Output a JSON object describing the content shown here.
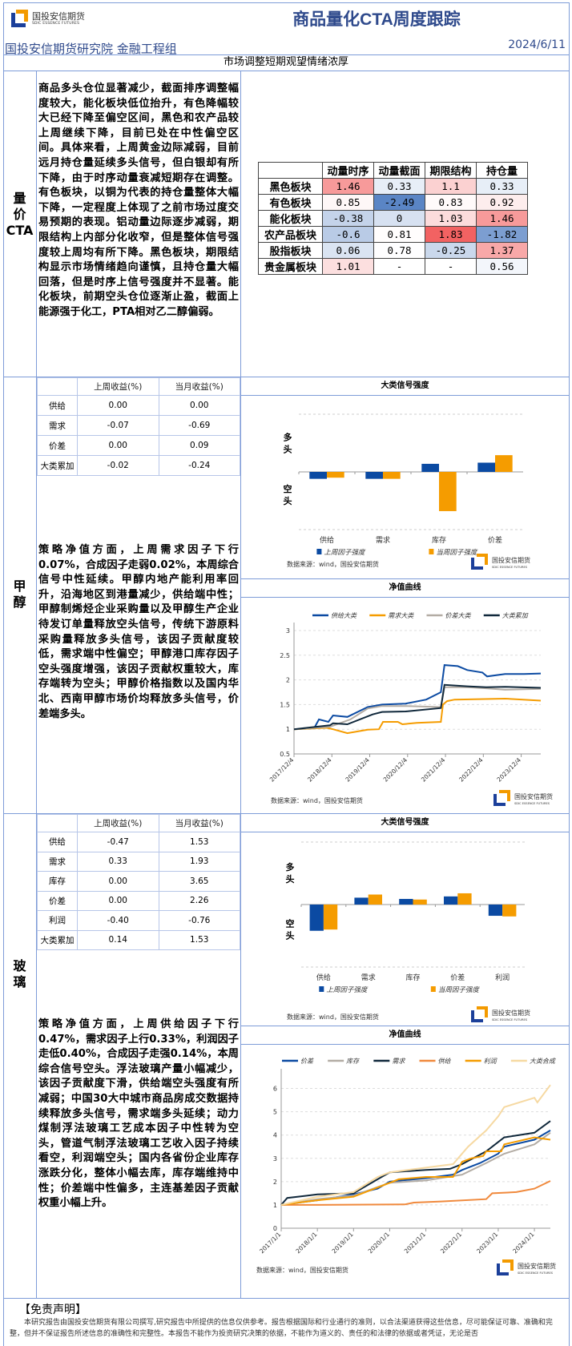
{
  "header": {
    "logo_cn": "国投安信期货",
    "logo_en": "SDIC ESSENCE FUTURES",
    "title": "商品量化CTA周度跟踪",
    "institute": "国投安信期货研究院 金融工程组",
    "date": "2024/6/11",
    "subtitle": "市场调整短期观望情绪浓厚"
  },
  "colors": {
    "border": "#7e9cd8",
    "blue": "#0b4aa2",
    "orange": "#f59c00",
    "gray": "#b3aca4",
    "dark": "#10283b",
    "light_orange": "#f0893c",
    "pale": "#f6d9a2",
    "heat_pos": "#f26262",
    "heat_neg": "#5a85c5"
  },
  "cta": {
    "label": [
      "量",
      "价",
      "CTA"
    ],
    "text": "商品多头仓位显著减少，截面排序调整幅度较大，能化板块低位抬升，有色降幅较大已经下降至偏空区间，黑色和农产品较上周继续下降，目前已处在中性偏空区间。具体来看，上周黄金边际减弱，目前远月持仓量延续多头信号，但白银却有所下降，由于时序动量衰减短期存在调整。有色板块，以铜为代表的持仓量整体大幅下降，一定程度上体现了之前市场过度交易预期的表现。铝动量边际逐步减弱，期限结构上内部分化收窄，但是整体信号强度较上周均有所下降。黑色板块，期限结构显示市场情绪趋向谨慎，且持仓量大幅回落，但是时序上信号强度并不显著。能化板块，前期空头仓位逐渐止盈，截面上能源强于化工，PTA相对乙二醇偏弱。",
    "heatmap": {
      "columns": [
        "动量时序",
        "动量截面",
        "期限结构",
        "持仓量"
      ],
      "rows": [
        {
          "name": "黑色板块",
          "values": [
            "1.46",
            "0.33",
            "1.1",
            "0.33"
          ]
        },
        {
          "name": "有色板块",
          "values": [
            "0.85",
            "-2.49",
            "0.83",
            "0.92"
          ]
        },
        {
          "name": "能化板块",
          "values": [
            "-0.38",
            "0",
            "1.03",
            "1.46"
          ]
        },
        {
          "name": "农产品板块",
          "values": [
            "-0.6",
            "0.81",
            "1.83",
            "-1.82"
          ]
        },
        {
          "name": "股指板块",
          "values": [
            "0.06",
            "0.78",
            "-0.25",
            "1.37"
          ]
        },
        {
          "name": "贵金属板块",
          "values": [
            "1.01",
            "-",
            "-",
            "0.56"
          ]
        }
      ]
    }
  },
  "methanol": {
    "label": [
      "甲",
      "醇"
    ],
    "table": {
      "headers": [
        "",
        "上周收益(%)",
        "当月收益(%)"
      ],
      "rows": [
        [
          "供给",
          "0.00",
          "0.00"
        ],
        [
          "需求",
          "-0.07",
          "-0.69"
        ],
        [
          "价差",
          "0.00",
          "0.09"
        ],
        [
          "大类累加",
          "-0.02",
          "-0.24"
        ]
      ]
    },
    "text": "策略净值方面，上周需求因子下行0.07%，合成因子走弱0.02%，本周综合信号中性延续。甲醇内地产能利用率回升，沿海地区到港量减少，供给端中性；甲醇制烯烃企业采购量以及甲醇生产企业待发订单量释放空头信号，传统下游原料采购量释放多头信号，该因子贡献度较低，需求端中性偏空；甲醇港口库存因子空头强度增强，该因子贡献权重较大，库存端转为空头；甲醇价格指数以及国内华北、西南甲醇市场价均释放多头信号，价差端多头。",
    "bar_title": "大类信号强度",
    "line_title": "净值曲线",
    "source": "数据来源：wind，国投安信期货"
  },
  "glass": {
    "label": [
      "玻",
      "璃"
    ],
    "table": {
      "headers": [
        "",
        "上周收益(%)",
        "当月收益(%)"
      ],
      "rows": [
        [
          "供给",
          "-0.47",
          "1.53"
        ],
        [
          "需求",
          "0.33",
          "1.93"
        ],
        [
          "库存",
          "0.00",
          "3.65"
        ],
        [
          "价差",
          "0.00",
          "2.26"
        ],
        [
          "利润",
          "-0.40",
          "-0.76"
        ],
        [
          "大类累加",
          "0.14",
          "1.53"
        ]
      ]
    },
    "text": "策略净值方面，上周供给因子下行0.47%，需求因子上行0.33%，利润因子走低0.40%，合成因子走强0.14%，本周综合信号空头。浮法玻璃产量小幅减少，该因子贡献度下滑，供给端空头强度有所减弱；中国30大中城市商品房成交数据持续释放多头信号，需求端多头延续；动力煤制浮法玻璃工艺成本因子中性转为空头，管道气制浮法玻璃工艺收入因子持续看空，利润端空头；国内各省份企业库存涨跌分化，整体小幅去库，库存端维持中性；价差端中性偏多，主连基差因子贡献权重小幅上升。",
    "bar_title": "大类信号强度",
    "line_title": "净值曲线",
    "source": "数据来源：wind，国投安信期货"
  },
  "chart_data": [
    {
      "id": "methanol_bar",
      "type": "bar",
      "title": "大类信号强度",
      "ylabel_top": "多头",
      "ylabel_bottom": "空头",
      "ylim": [
        -1,
        1
      ],
      "grid": true,
      "legend": "bottom",
      "categories": [
        "供给",
        "需求",
        "库存",
        "价差"
      ],
      "series": [
        {
          "name": "上周因子强度",
          "color": "#0b4aa2",
          "values": [
            -0.12,
            -0.12,
            0.14,
            0.16
          ]
        },
        {
          "name": "当周因子强度",
          "color": "#f59c00",
          "values": [
            -0.1,
            -0.12,
            -0.68,
            0.29
          ]
        }
      ]
    },
    {
      "id": "methanol_line",
      "type": "line",
      "title": "净值曲线",
      "ylim": [
        0.5,
        3
      ],
      "yticks": [
        "0.5",
        "1",
        "1.5",
        "2",
        "2.5",
        "3"
      ],
      "xlim": [
        "2017-12-04",
        "2024-06-10"
      ],
      "grid": true,
      "legend": "top",
      "xticks": [
        [
          "2017-12-04",
          "2017/12/4"
        ],
        [
          "2018-12-04",
          "2018/12/4"
        ],
        [
          "2019-12-04",
          "2019/12/4"
        ],
        [
          "2020-12-04",
          "2020/12/4"
        ],
        [
          "2021-12-04",
          "2021/12/4"
        ],
        [
          "2022-12-04",
          "2022/12/4"
        ],
        [
          "2023-12-04",
          "2023/12/4"
        ]
      ],
      "series": [
        {
          "name": "供给大类",
          "color": "#0b4aa2",
          "points": [
            [
              "2017-12-04",
              1.0
            ],
            [
              "2018-06-15",
              1.02
            ],
            [
              "2018-08-01",
              1.2
            ],
            [
              "2018-11-01",
              1.15
            ],
            [
              "2018-12-15",
              1.28
            ],
            [
              "2019-05-01",
              1.25
            ],
            [
              "2019-11-15",
              1.45
            ],
            [
              "2020-04-01",
              1.5
            ],
            [
              "2020-11-15",
              1.52
            ],
            [
              "2021-06-01",
              1.6
            ],
            [
              "2021-10-20",
              1.75
            ],
            [
              "2021-11-25",
              2.3
            ],
            [
              "2022-04-01",
              2.28
            ],
            [
              "2022-07-01",
              2.2
            ],
            [
              "2022-11-25",
              2.15
            ],
            [
              "2023-01-10",
              2.07
            ],
            [
              "2023-07-01",
              2.12
            ],
            [
              "2024-01-01",
              2.12
            ],
            [
              "2024-06-10",
              2.13
            ]
          ]
        },
        {
          "name": "需求大类",
          "color": "#f59c00",
          "points": [
            [
              "2017-12-04",
              1.0
            ],
            [
              "2018-10-15",
              1.03
            ],
            [
              "2018-12-15",
              1.0
            ],
            [
              "2019-05-01",
              0.92
            ],
            [
              "2019-11-15",
              0.99
            ],
            [
              "2020-03-01",
              1.0
            ],
            [
              "2020-04-10",
              1.15
            ],
            [
              "2020-09-01",
              1.15
            ],
            [
              "2020-10-15",
              1.1
            ],
            [
              "2021-03-01",
              1.13
            ],
            [
              "2021-10-20",
              1.15
            ],
            [
              "2021-11-10",
              1.5
            ],
            [
              "2021-12-20",
              1.57
            ],
            [
              "2022-03-01",
              1.6
            ],
            [
              "2023-07-01",
              1.62
            ],
            [
              "2024-06-10",
              1.58
            ]
          ]
        },
        {
          "name": "价差大类",
          "color": "#b3aca4",
          "points": [
            [
              "2017-12-04",
              1.0
            ],
            [
              "2018-11-15",
              1.05
            ],
            [
              "2019-06-01",
              1.2
            ],
            [
              "2019-11-15",
              1.42
            ],
            [
              "2020-04-01",
              1.47
            ],
            [
              "2020-11-15",
              1.47
            ],
            [
              "2021-10-20",
              1.45
            ],
            [
              "2021-11-25",
              1.85
            ],
            [
              "2022-07-01",
              1.85
            ],
            [
              "2023-01-01",
              1.83
            ],
            [
              "2023-07-01",
              1.8
            ],
            [
              "2024-06-10",
              1.82
            ]
          ]
        },
        {
          "name": "大类累加",
          "color": "#10283b",
          "points": [
            [
              "2017-12-04",
              1.0
            ],
            [
              "2018-11-15",
              1.08
            ],
            [
              "2018-12-15",
              1.12
            ],
            [
              "2019-05-01",
              1.1
            ],
            [
              "2020-01-01",
              1.3
            ],
            [
              "2020-04-01",
              1.35
            ],
            [
              "2020-11-15",
              1.36
            ],
            [
              "2021-10-20",
              1.43
            ],
            [
              "2021-11-25",
              1.9
            ],
            [
              "2022-07-01",
              1.87
            ],
            [
              "2023-01-01",
              1.85
            ],
            [
              "2023-07-01",
              1.86
            ],
            [
              "2024-06-10",
              1.84
            ]
          ]
        }
      ]
    },
    {
      "id": "glass_bar",
      "type": "bar",
      "title": "大类信号强度",
      "ylabel_top": "多头",
      "ylabel_bottom": "空头",
      "ylim": [
        -1,
        1
      ],
      "grid": true,
      "legend": "bottom",
      "categories": [
        "供给",
        "需求",
        "库存",
        "价差",
        "利润"
      ],
      "series": [
        {
          "name": "上周因子强度",
          "color": "#0b4aa2",
          "values": [
            -0.42,
            0.11,
            0.09,
            0.13,
            -0.18
          ]
        },
        {
          "name": "当周因子强度",
          "color": "#f59c00",
          "values": [
            -0.4,
            0.16,
            0.08,
            0.18,
            -0.19
          ]
        }
      ]
    },
    {
      "id": "glass_line",
      "type": "line",
      "title": "净值曲线",
      "ylim": [
        0,
        6.5
      ],
      "yticks": [
        "0",
        "1",
        "2",
        "3",
        "4",
        "5",
        "6"
      ],
      "xlim": [
        "2017-01-01",
        "2024-06-10"
      ],
      "grid": true,
      "legend": "top",
      "xticks": [
        [
          "2017-01-01",
          "2017/1/1"
        ],
        [
          "2018-01-01",
          "2018/1/1"
        ],
        [
          "2019-01-01",
          "2019/1/1"
        ],
        [
          "2020-01-01",
          "2020/1/1"
        ],
        [
          "2021-01-01",
          "2021/1/1"
        ],
        [
          "2022-01-01",
          "2022/1/1"
        ],
        [
          "2023-01-01",
          "2023/1/1"
        ],
        [
          "2024-01-01",
          "2024/1/1"
        ]
      ],
      "series": [
        {
          "name": "价差",
          "color": "#0b4aa2",
          "points": [
            [
              "2017-01-01",
              1.0
            ],
            [
              "2018-01-01",
              1.2
            ],
            [
              "2019-01-01",
              1.45
            ],
            [
              "2019-09-01",
              1.7
            ],
            [
              "2020-01-01",
              2.0
            ],
            [
              "2021-01-01",
              2.15
            ],
            [
              "2021-10-01",
              2.3
            ],
            [
              "2022-01-01",
              2.5
            ],
            [
              "2022-07-01",
              2.8
            ],
            [
              "2023-01-01",
              3.2
            ],
            [
              "2023-03-01",
              3.5
            ],
            [
              "2024-01-01",
              3.8
            ],
            [
              "2024-06-10",
              4.2
            ]
          ]
        },
        {
          "name": "库存",
          "color": "#b3aca4",
          "points": [
            [
              "2017-01-01",
              1.0
            ],
            [
              "2018-01-01",
              1.25
            ],
            [
              "2019-01-01",
              1.4
            ],
            [
              "2020-01-01",
              1.95
            ],
            [
              "2021-01-01",
              2.05
            ],
            [
              "2022-01-01",
              2.3
            ],
            [
              "2022-09-01",
              2.8
            ],
            [
              "2023-03-01",
              3.2
            ],
            [
              "2024-01-01",
              3.6
            ],
            [
              "2024-06-10",
              4.1
            ]
          ]
        },
        {
          "name": "需求",
          "color": "#10283b",
          "points": [
            [
              "2017-01-01",
              1.0
            ],
            [
              "2017-03-01",
              1.3
            ],
            [
              "2018-01-01",
              1.45
            ],
            [
              "2019-01-01",
              1.5
            ],
            [
              "2019-09-01",
              2.1
            ],
            [
              "2020-01-01",
              2.4
            ],
            [
              "2021-01-01",
              2.5
            ],
            [
              "2021-09-01",
              2.55
            ],
            [
              "2022-01-01",
              2.75
            ],
            [
              "2022-09-01",
              3.3
            ],
            [
              "2023-03-01",
              3.9
            ],
            [
              "2024-01-01",
              4.1
            ],
            [
              "2024-06-10",
              4.6
            ]
          ]
        },
        {
          "name": "供给",
          "color": "#f0893c",
          "points": [
            [
              "2017-01-01",
              1.0
            ],
            [
              "2018-01-01",
              1.0
            ],
            [
              "2020-06-01",
              1.02
            ],
            [
              "2020-09-01",
              1.1
            ],
            [
              "2021-06-01",
              1.15
            ],
            [
              "2022-09-01",
              1.25
            ],
            [
              "2022-11-01",
              1.5
            ],
            [
              "2023-07-01",
              1.55
            ],
            [
              "2024-01-01",
              1.7
            ],
            [
              "2024-06-10",
              2.03
            ]
          ]
        },
        {
          "name": "利润",
          "color": "#f59c00",
          "points": [
            [
              "2017-01-01",
              1.0
            ],
            [
              "2018-01-01",
              1.2
            ],
            [
              "2019-01-01",
              1.35
            ],
            [
              "2020-01-01",
              1.95
            ],
            [
              "2020-04-01",
              2.1
            ],
            [
              "2021-01-01",
              2.2
            ],
            [
              "2021-10-01",
              2.2
            ],
            [
              "2022-01-01",
              2.85
            ],
            [
              "2022-04-01",
              3.0
            ],
            [
              "2022-08-01",
              3.1
            ],
            [
              "2022-09-01",
              3.3
            ],
            [
              "2023-02-01",
              3.3
            ],
            [
              "2023-03-01",
              3.6
            ],
            [
              "2024-01-01",
              3.9
            ],
            [
              "2024-06-10",
              3.8
            ]
          ]
        },
        {
          "name": "大类合成",
          "color": "#f6d9a2",
          "points": [
            [
              "2017-01-01",
              1.0
            ],
            [
              "2018-01-01",
              1.35
            ],
            [
              "2019-01-01",
              1.55
            ],
            [
              "2019-09-01",
              2.2
            ],
            [
              "2020-01-01",
              2.4
            ],
            [
              "2021-01-01",
              2.6
            ],
            [
              "2021-10-01",
              2.75
            ],
            [
              "2022-03-01",
              3.5
            ],
            [
              "2022-09-01",
              4.2
            ],
            [
              "2023-01-01",
              4.8
            ],
            [
              "2023-03-01",
              5.2
            ],
            [
              "2024-01-01",
              5.6
            ],
            [
              "2024-02-01",
              5.4
            ],
            [
              "2024-06-10",
              6.15
            ]
          ]
        }
      ]
    }
  ],
  "disclaimer": {
    "heading": "【免责声明】",
    "text": "本研究报告由国投安信期货有限公司撰写,研究报告中所提供的信息仅供参考。报告根据国际和行业通行的准则，以合法渠道获得这些信息，尽可能保证可靠、准确和完整，但并不保证报告所述信息的准确性和完整性。本报告不能作为投资研究决策的依据，不能作为道义的、责任的和法律的依据或者凭证，无论是否"
  }
}
